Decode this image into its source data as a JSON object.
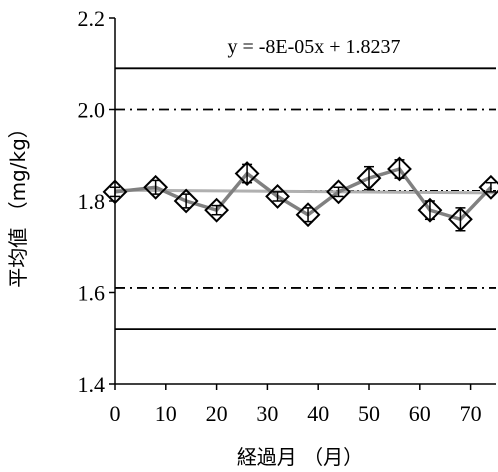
{
  "chart_data": {
    "type": "line",
    "xlabel": "経過月 （月）",
    "ylabel": "平均値 （mg/kg）",
    "xlim": [
      0,
      75
    ],
    "ylim": [
      1.4,
      2.2
    ],
    "x_ticks": [
      "0",
      "10",
      "20",
      "30",
      "40",
      "50",
      "60",
      "70"
    ],
    "y_ticks": [
      "1.4",
      "1.6",
      "1.8",
      "2.0",
      "2.2"
    ],
    "grid": false,
    "trendline_equation": "y = -8E-05x + 1.8237",
    "series": [
      {
        "marker": "diamond",
        "color": "#808080",
        "x": [
          0,
          8,
          14,
          20,
          26,
          32,
          38,
          44,
          50,
          56,
          62,
          68,
          74
        ],
        "y": [
          1.82,
          1.83,
          1.8,
          1.78,
          1.86,
          1.81,
          1.77,
          1.82,
          1.85,
          1.87,
          1.78,
          1.76,
          1.83
        ],
        "error": [
          0.01,
          0.015,
          0.015,
          0.01,
          0.02,
          0.01,
          0.015,
          0.01,
          0.025,
          0.02,
          0.02,
          0.025,
          0.01
        ]
      }
    ],
    "reference_lines": [
      {
        "y": 2.09,
        "style": "solid"
      },
      {
        "y": 2.0,
        "style": "dash-dot"
      },
      {
        "y": 1.823,
        "style": "dash-dot-dot"
      },
      {
        "y": 1.61,
        "style": "dash-dot"
      },
      {
        "y": 1.52,
        "style": "solid"
      }
    ],
    "trendline": {
      "slope": -8e-05,
      "intercept": 1.8237,
      "color": "#b0b0b0"
    }
  }
}
